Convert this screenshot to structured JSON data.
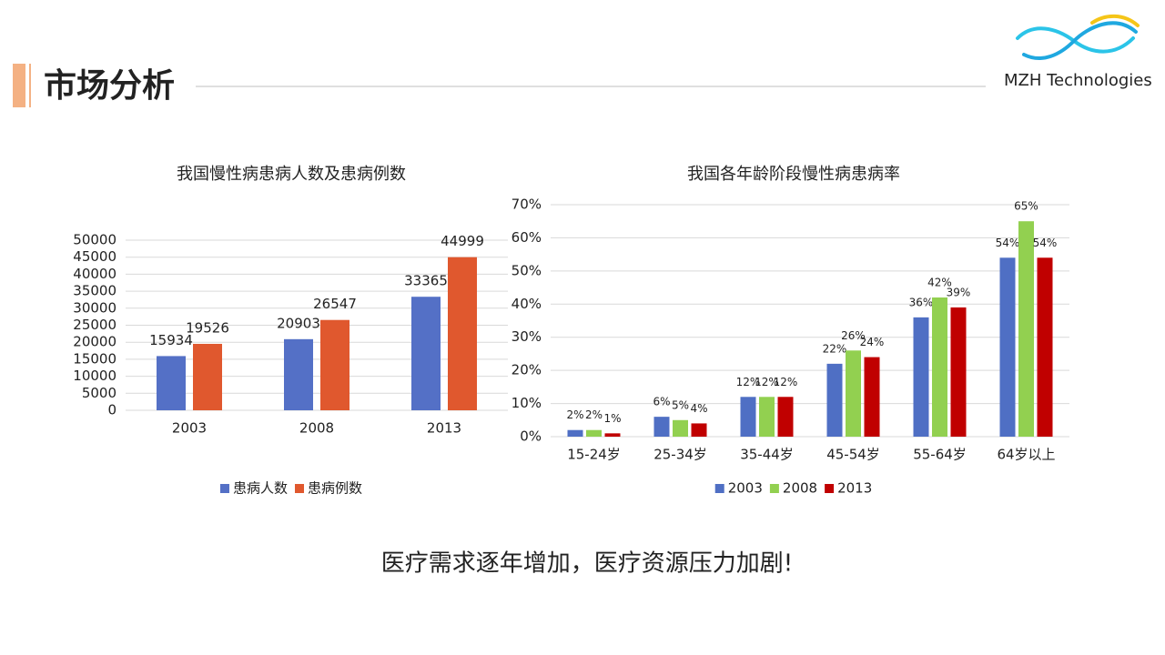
{
  "header": {
    "title": "市场分析",
    "logo": "MZH Technologies"
  },
  "conclusion": "医疗需求逐年增加，医疗资源压力加剧!",
  "chart_data": [
    {
      "type": "bar",
      "title": "我国慢性病患病人数及患病例数",
      "categories": [
        "2003",
        "2008",
        "2013"
      ],
      "series": [
        {
          "name": "患病人数",
          "color": "#5470c6",
          "values": [
            15934,
            20903,
            33365
          ]
        },
        {
          "name": "患病例数",
          "color": "#e0582e",
          "values": [
            19526,
            26547,
            44999
          ]
        }
      ],
      "ylim": [
        0,
        50000
      ],
      "yticks": [
        0,
        5000,
        10000,
        15000,
        20000,
        25000,
        30000,
        35000,
        40000,
        45000,
        50000
      ],
      "grid": true,
      "legend": "bottom"
    },
    {
      "type": "bar",
      "title": "我国各年龄阶段慢性病患病率",
      "categories": [
        "15-24岁",
        "25-34岁",
        "35-44岁",
        "45-54岁",
        "55-64岁",
        "64岁以上"
      ],
      "series": [
        {
          "name": "2003",
          "color": "#4f6fc4",
          "values": [
            2,
            6,
            12,
            22,
            36,
            54
          ],
          "value_labels": [
            "2%",
            "6%",
            "12%",
            "22%",
            "36%",
            "54%"
          ]
        },
        {
          "name": "2008",
          "color": "#92d050",
          "values": [
            2,
            5,
            12,
            26,
            42,
            65
          ],
          "value_labels": [
            "2%",
            "5%",
            "12%",
            "26%",
            "42%",
            "65%"
          ]
        },
        {
          "name": "2013",
          "color": "#c00000",
          "values": [
            1,
            4,
            12,
            24,
            39,
            54
          ],
          "value_labels": [
            "1%",
            "4%",
            "12%",
            "24%",
            "39%",
            "54%"
          ]
        }
      ],
      "ylim": [
        0,
        70
      ],
      "yticks": [
        {
          "value": 0,
          "label": "0%"
        },
        {
          "value": 10,
          "label": "10%"
        },
        {
          "value": 20,
          "label": "20%"
        },
        {
          "value": 30,
          "label": "30%"
        },
        {
          "value": 40,
          "label": "40%"
        },
        {
          "value": 50,
          "label": "50%"
        },
        {
          "value": 60,
          "label": "60%"
        },
        {
          "value": 70,
          "label": "70%"
        }
      ],
      "grid": true,
      "legend": "bottom"
    }
  ]
}
